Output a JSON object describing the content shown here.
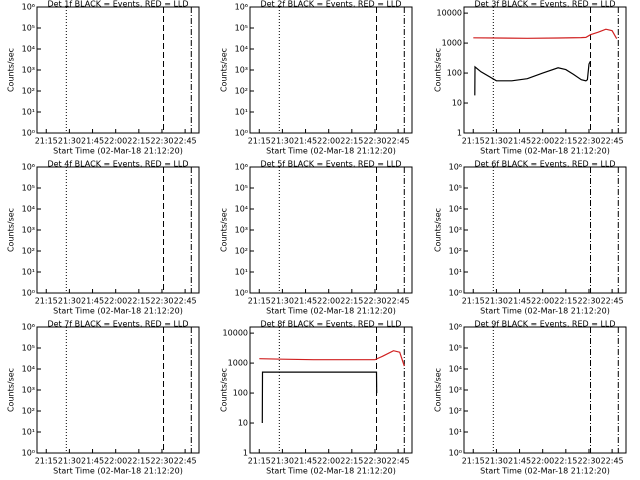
{
  "chart_data": [
    {
      "type": "line",
      "title": "Det 1f BLACK = Events, RED = LLD",
      "xlabel": "Start Time (02-Mar-18 21:12:20)",
      "ylabel": "Counts/sec",
      "log_y": true,
      "xlim": [
        1269,
        1374
      ],
      "xticks": [
        {
          "value": 1275,
          "label": "21:15"
        },
        {
          "value": 1290,
          "label": "21:30"
        },
        {
          "value": 1305,
          "label": "21:45"
        },
        {
          "value": 1320,
          "label": "22:00"
        },
        {
          "value": 1335,
          "label": "22:15"
        },
        {
          "value": 1350,
          "label": "22:30"
        },
        {
          "value": 1365,
          "label": "22:45"
        }
      ],
      "ylim": [
        1,
        1000000
      ],
      "yticks": [
        {
          "value": 1,
          "label": "10⁰"
        },
        {
          "value": 10,
          "label": "10¹"
        },
        {
          "value": 100,
          "label": "10²"
        },
        {
          "value": 1000,
          "label": "10³"
        },
        {
          "value": 10000,
          "label": "10⁴"
        },
        {
          "value": 100000,
          "label": "10⁵"
        },
        {
          "value": 1000000,
          "label": "10⁶"
        }
      ],
      "vlines": [
        {
          "x": 1288,
          "style": "dotted"
        },
        {
          "x": 1351,
          "style": "dashed"
        },
        {
          "x": 1369,
          "style": "dash-dot"
        }
      ],
      "series": []
    },
    {
      "type": "line",
      "title": "Det 2f BLACK = Events, RED = LLD",
      "xlabel": "Start Time (02-Mar-18 21:12:20)",
      "ylabel": "Counts/sec",
      "log_y": true,
      "xlim": [
        1269,
        1374
      ],
      "xticks": [
        {
          "value": 1275,
          "label": "21:15"
        },
        {
          "value": 1290,
          "label": "21:30"
        },
        {
          "value": 1305,
          "label": "21:45"
        },
        {
          "value": 1320,
          "label": "22:00"
        },
        {
          "value": 1335,
          "label": "22:15"
        },
        {
          "value": 1350,
          "label": "22:30"
        },
        {
          "value": 1365,
          "label": "22:45"
        }
      ],
      "ylim": [
        1,
        1000000
      ],
      "yticks": [
        {
          "value": 1,
          "label": "10⁰"
        },
        {
          "value": 10,
          "label": "10¹"
        },
        {
          "value": 100,
          "label": "10²"
        },
        {
          "value": 1000,
          "label": "10³"
        },
        {
          "value": 10000,
          "label": "10⁴"
        },
        {
          "value": 100000,
          "label": "10⁵"
        },
        {
          "value": 1000000,
          "label": "10⁶"
        }
      ],
      "vlines": [
        {
          "x": 1288,
          "style": "dotted"
        },
        {
          "x": 1351,
          "style": "dashed"
        },
        {
          "x": 1369,
          "style": "dash-dot"
        }
      ],
      "series": []
    },
    {
      "type": "line",
      "title": "Det 3f BLACK = Events, RED = LLD",
      "xlabel": "Start Time (02-Mar-18 21:12:20)",
      "ylabel": "Counts/sec",
      "log_y": true,
      "xlim": [
        1269,
        1374
      ],
      "xticks": [
        {
          "value": 1275,
          "label": "21:15"
        },
        {
          "value": 1290,
          "label": "21:30"
        },
        {
          "value": 1305,
          "label": "21:45"
        },
        {
          "value": 1320,
          "label": "22:00"
        },
        {
          "value": 1335,
          "label": "22:15"
        },
        {
          "value": 1350,
          "label": "22:30"
        },
        {
          "value": 1365,
          "label": "22:45"
        }
      ],
      "ylim": [
        1,
        16000
      ],
      "yticks": [
        1,
        10,
        100,
        1000,
        10000
      ],
      "vlines": [
        {
          "x": 1288,
          "style": "dotted"
        },
        {
          "x": 1351,
          "style": "dashed"
        },
        {
          "x": 1369,
          "style": "dash-dot"
        }
      ],
      "series": [
        {
          "color": "#d02020",
          "x": [
            1275,
            1290,
            1310,
            1330,
            1345,
            1348,
            1351,
            1356,
            1361,
            1365,
            1368
          ],
          "values": [
            1500,
            1480,
            1450,
            1480,
            1520,
            1550,
            1900,
            2300,
            2900,
            2600,
            1400
          ]
        },
        {
          "color": "#000000",
          "x": [
            1276,
            1276.1,
            1280,
            1290,
            1300,
            1310,
            1320,
            1330,
            1335,
            1340,
            1345,
            1348,
            1349,
            1350,
            1351
          ],
          "values": [
            18,
            160,
            110,
            55,
            55,
            65,
            100,
            150,
            130,
            90,
            60,
            55,
            60,
            200,
            250
          ]
        }
      ]
    },
    {
      "type": "line",
      "title": "Det 4f BLACK = Events, RED = LLD",
      "xlabel": "Start Time (02-Mar-18 21:12:20)",
      "ylabel": "Counts/sec",
      "log_y": true,
      "xlim": [
        1269,
        1374
      ],
      "xticks": [
        {
          "value": 1275,
          "label": "21:15"
        },
        {
          "value": 1290,
          "label": "21:30"
        },
        {
          "value": 1305,
          "label": "21:45"
        },
        {
          "value": 1320,
          "label": "22:00"
        },
        {
          "value": 1335,
          "label": "22:15"
        },
        {
          "value": 1350,
          "label": "22:30"
        },
        {
          "value": 1365,
          "label": "22:45"
        }
      ],
      "ylim": [
        1,
        1000000
      ],
      "yticks": [
        {
          "value": 1,
          "label": "10⁰"
        },
        {
          "value": 10,
          "label": "10¹"
        },
        {
          "value": 100,
          "label": "10²"
        },
        {
          "value": 1000,
          "label": "10³"
        },
        {
          "value": 10000,
          "label": "10⁴"
        },
        {
          "value": 100000,
          "label": "10⁵"
        },
        {
          "value": 1000000,
          "label": "10⁶"
        }
      ],
      "vlines": [
        {
          "x": 1288,
          "style": "dotted"
        },
        {
          "x": 1351,
          "style": "dashed"
        },
        {
          "x": 1369,
          "style": "dash-dot"
        }
      ],
      "series": []
    },
    {
      "type": "line",
      "title": "Det 5f BLACK = Events, RED = LLD",
      "xlabel": "Start Time (02-Mar-18 21:12:20)",
      "ylabel": "Counts/sec",
      "log_y": true,
      "xlim": [
        1269,
        1374
      ],
      "xticks": [
        {
          "value": 1275,
          "label": "21:15"
        },
        {
          "value": 1290,
          "label": "21:30"
        },
        {
          "value": 1305,
          "label": "21:45"
        },
        {
          "value": 1320,
          "label": "22:00"
        },
        {
          "value": 1335,
          "label": "22:15"
        },
        {
          "value": 1350,
          "label": "22:30"
        },
        {
          "value": 1365,
          "label": "22:45"
        }
      ],
      "ylim": [
        1,
        1000000
      ],
      "yticks": [
        {
          "value": 1,
          "label": "10⁰"
        },
        {
          "value": 10,
          "label": "10¹"
        },
        {
          "value": 100,
          "label": "10²"
        },
        {
          "value": 1000,
          "label": "10³"
        },
        {
          "value": 10000,
          "label": "10⁴"
        },
        {
          "value": 100000,
          "label": "10⁵"
        },
        {
          "value": 1000000,
          "label": "10⁶"
        }
      ],
      "vlines": [
        {
          "x": 1288,
          "style": "dotted"
        },
        {
          "x": 1351,
          "style": "dashed"
        },
        {
          "x": 1369,
          "style": "dash-dot"
        }
      ],
      "series": []
    },
    {
      "type": "line",
      "title": "Det 6f BLACK = Events, RED = LLD",
      "xlabel": "Start Time (02-Mar-18 21:12:20)",
      "ylabel": "Counts/sec",
      "log_y": true,
      "xlim": [
        1269,
        1374
      ],
      "xticks": [
        {
          "value": 1275,
          "label": "21:15"
        },
        {
          "value": 1290,
          "label": "21:30"
        },
        {
          "value": 1305,
          "label": "21:45"
        },
        {
          "value": 1320,
          "label": "22:00"
        },
        {
          "value": 1335,
          "label": "22:15"
        },
        {
          "value": 1350,
          "label": "22:30"
        },
        {
          "value": 1365,
          "label": "22:45"
        }
      ],
      "ylim": [
        1,
        1000000
      ],
      "yticks": [
        {
          "value": 1,
          "label": "10⁰"
        },
        {
          "value": 10,
          "label": "10¹"
        },
        {
          "value": 100,
          "label": "10²"
        },
        {
          "value": 1000,
          "label": "10³"
        },
        {
          "value": 10000,
          "label": "10⁴"
        },
        {
          "value": 100000,
          "label": "10⁵"
        },
        {
          "value": 1000000,
          "label": "10⁶"
        }
      ],
      "vlines": [
        {
          "x": 1288,
          "style": "dotted"
        },
        {
          "x": 1351,
          "style": "dash-dot"
        },
        {
          "x": 1369,
          "style": "dash-dot"
        }
      ],
      "series": []
    },
    {
      "type": "line",
      "title": "Det 7f BLACK = Events, RED = LLD",
      "xlabel": "Start Time (02-Mar-18 21:12:20)",
      "ylabel": "Counts/sec",
      "log_y": true,
      "xlim": [
        1269,
        1374
      ],
      "xticks": [
        {
          "value": 1275,
          "label": "21:15"
        },
        {
          "value": 1290,
          "label": "21:30"
        },
        {
          "value": 1305,
          "label": "21:45"
        },
        {
          "value": 1320,
          "label": "22:00"
        },
        {
          "value": 1335,
          "label": "22:15"
        },
        {
          "value": 1350,
          "label": "22:30"
        },
        {
          "value": 1365,
          "label": "22:45"
        }
      ],
      "ylim": [
        1,
        1000000
      ],
      "yticks": [
        {
          "value": 1,
          "label": "10⁰"
        },
        {
          "value": 10,
          "label": "10¹"
        },
        {
          "value": 100,
          "label": "10²"
        },
        {
          "value": 1000,
          "label": "10³"
        },
        {
          "value": 10000,
          "label": "10⁴"
        },
        {
          "value": 100000,
          "label": "10⁵"
        },
        {
          "value": 1000000,
          "label": "10⁶"
        }
      ],
      "vlines": [
        {
          "x": 1288,
          "style": "dotted"
        },
        {
          "x": 1351,
          "style": "dashed"
        },
        {
          "x": 1369,
          "style": "dash-dot"
        }
      ],
      "series": []
    },
    {
      "type": "line",
      "title": "Det 8f BLACK = Events, RED = LLD",
      "xlabel": "Start Time (02-Mar-18 21:12:20)",
      "ylabel": "Counts/sec",
      "log_y": true,
      "xlim": [
        1269,
        1374
      ],
      "xticks": [
        {
          "value": 1275,
          "label": "21:15"
        },
        {
          "value": 1290,
          "label": "21:30"
        },
        {
          "value": 1305,
          "label": "21:45"
        },
        {
          "value": 1320,
          "label": "22:00"
        },
        {
          "value": 1335,
          "label": "22:15"
        },
        {
          "value": 1350,
          "label": "22:30"
        },
        {
          "value": 1365,
          "label": "22:45"
        }
      ],
      "ylim": [
        1,
        16000
      ],
      "yticks": [
        1,
        10,
        100,
        1000,
        10000
      ],
      "vlines": [
        {
          "x": 1288,
          "style": "dotted"
        },
        {
          "x": 1351,
          "style": "dashed"
        },
        {
          "x": 1369,
          "style": "dash-dot"
        }
      ],
      "series": [
        {
          "color": "#d02020",
          "x": [
            1275,
            1290,
            1310,
            1330,
            1350,
            1355,
            1362,
            1366,
            1369
          ],
          "values": [
            1400,
            1350,
            1300,
            1300,
            1300,
            1700,
            2600,
            2300,
            800
          ]
        },
        {
          "color": "#000000",
          "x": [
            1277,
            1277.1,
            1300,
            1340,
            1351,
            1351.1
          ],
          "values": [
            10,
            500,
            500,
            500,
            500,
            100
          ]
        }
      ]
    },
    {
      "type": "line",
      "title": "Det 9f BLACK = Events, RED = LLD",
      "xlabel": "Start Time (02-Mar-18 21:12:20)",
      "ylabel": "Counts/sec",
      "log_y": true,
      "xlim": [
        1269,
        1374
      ],
      "xticks": [
        {
          "value": 1275,
          "label": "21:15"
        },
        {
          "value": 1290,
          "label": "21:30"
        },
        {
          "value": 1305,
          "label": "21:45"
        },
        {
          "value": 1320,
          "label": "22:00"
        },
        {
          "value": 1335,
          "label": "22:15"
        },
        {
          "value": 1350,
          "label": "22:30"
        },
        {
          "value": 1365,
          "label": "22:45"
        }
      ],
      "ylim": [
        1,
        1000000
      ],
      "yticks": [
        {
          "value": 1,
          "label": "10⁰"
        },
        {
          "value": 10,
          "label": "10¹"
        },
        {
          "value": 100,
          "label": "10²"
        },
        {
          "value": 1000,
          "label": "10³"
        },
        {
          "value": 10000,
          "label": "10⁴"
        },
        {
          "value": 100000,
          "label": "10⁵"
        },
        {
          "value": 1000000,
          "label": "10⁶"
        }
      ],
      "vlines": [
        {
          "x": 1288,
          "style": "dotted"
        },
        {
          "x": 1351,
          "style": "dash-dot"
        },
        {
          "x": 1369,
          "style": "dash-dot"
        }
      ],
      "series": []
    }
  ]
}
